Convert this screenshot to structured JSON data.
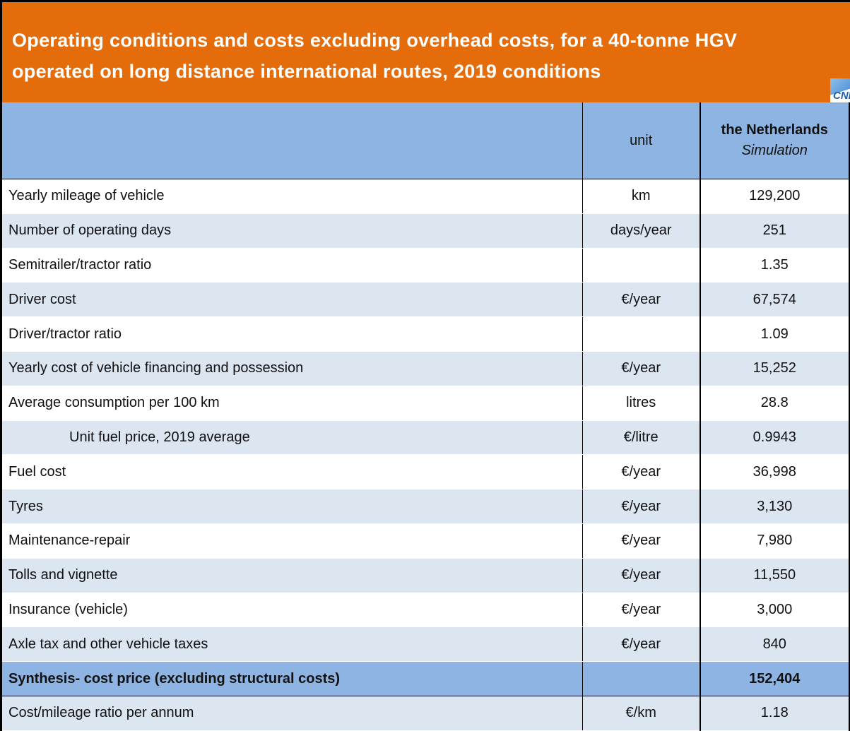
{
  "header": {
    "title": "Operating conditions and costs excluding overhead costs, for a 40-tonne HGV operated on long distance international routes, 2019 conditions",
    "logo": "CNR"
  },
  "table": {
    "columns": [
      "unit",
      "the Netherlands",
      "Simulation"
    ],
    "rows": [
      [
        "Yearly mileage of vehicle",
        "km",
        "129,200"
      ],
      [
        "Number of operating days",
        "days/year",
        "251"
      ],
      [
        "Semitrailer/tractor ratio",
        null,
        "1.35"
      ],
      [
        "Driver cost",
        "€/year",
        "67,574"
      ],
      [
        "Driver/tractor ratio",
        null,
        "1.09"
      ],
      [
        "Yearly cost of vehicle financing and possession",
        "€/year",
        "15,252"
      ],
      [
        "Average consumption per 100 km",
        "litres",
        "28.8"
      ],
      [
        "Unit fuel price, 2019 average",
        "€/litre",
        "0.9943"
      ],
      [
        "Fuel cost",
        "€/year",
        "36,998"
      ],
      [
        "Tyres",
        "€/year",
        "3,130"
      ],
      [
        "Maintenance-repair",
        "€/year",
        "7,980"
      ],
      [
        "Tolls and vignette",
        "€/year",
        "11,550"
      ],
      [
        "Insurance (vehicle)",
        "€/year",
        "3,000"
      ],
      [
        "Axle tax and other vehicle taxes",
        "€/year",
        "840"
      ],
      [
        "Synthesis- cost price (excluding structural costs)",
        null,
        "152,404"
      ],
      [
        "Cost/mileage ratio per annum",
        "€/km",
        "1.18"
      ]
    ]
  }
}
